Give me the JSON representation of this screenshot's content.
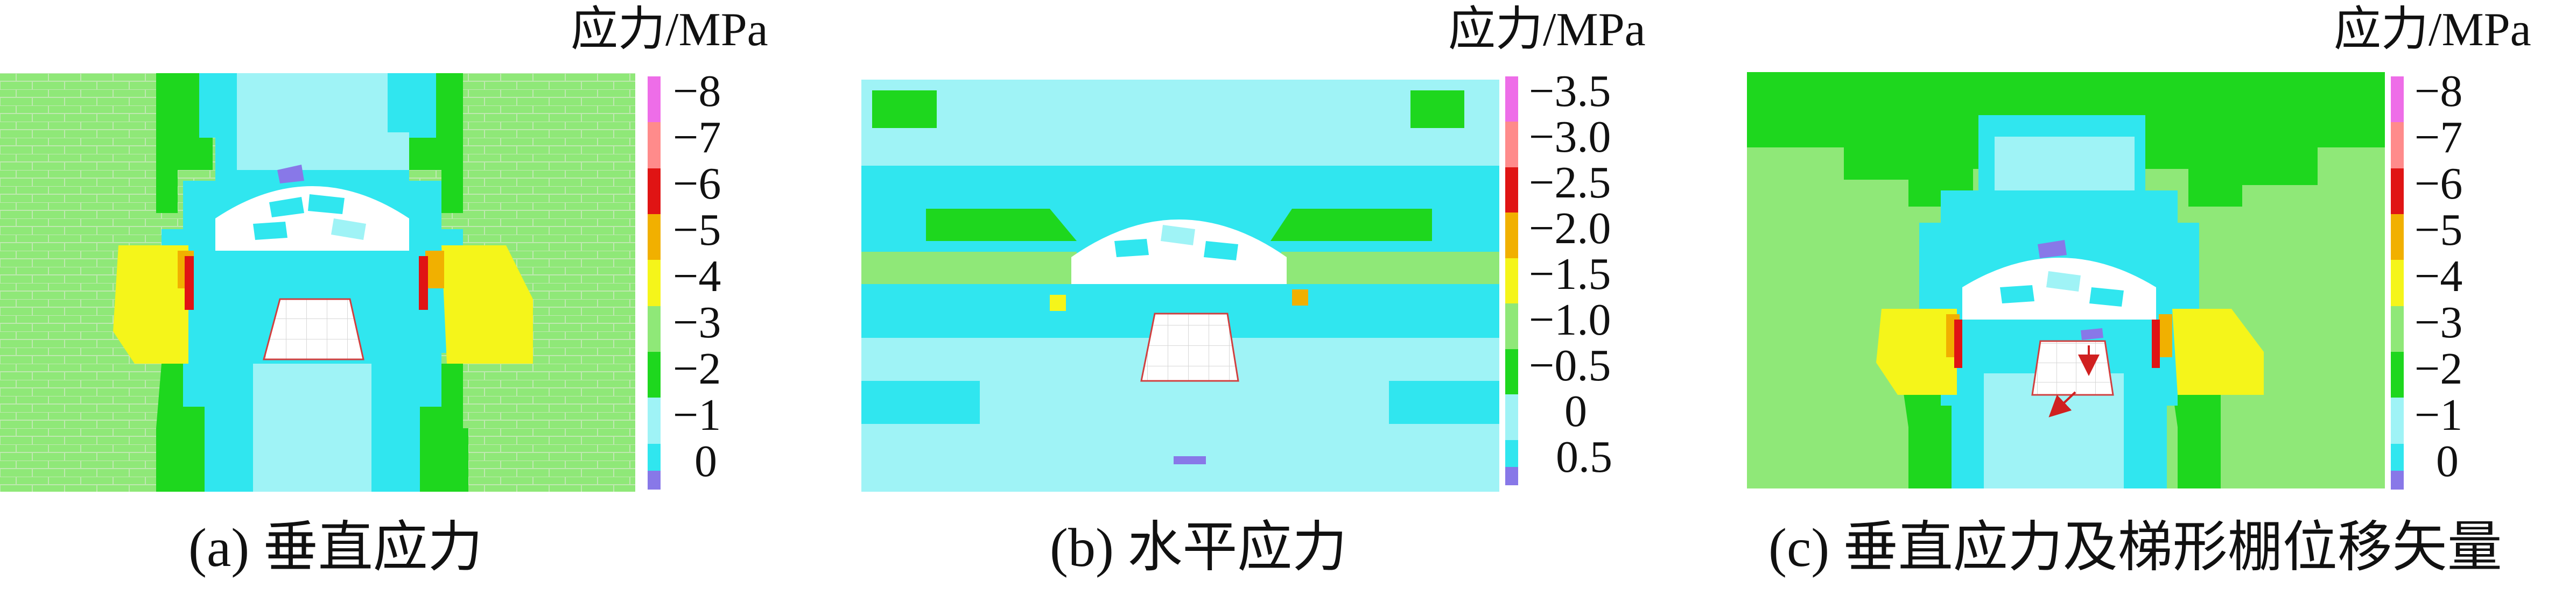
{
  "colors": {
    "pink": "#ee6de8",
    "salmon": "#ff8b8b",
    "red": "#e01414",
    "orange": "#f1b000",
    "yellow": "#f5f51a",
    "lightgreen": "#8fe878",
    "green": "#1ed71e",
    "lightcyan": "#9ff3f6",
    "cyan": "#30e6ef",
    "purple": "#8878e8",
    "white": "#ffffff",
    "gridline": "#d7d7d7"
  },
  "panels": [
    {
      "id": "a",
      "colorbar_title": "应力/MPa",
      "ticks": [
        "−8",
        "−7",
        "−6",
        "−5",
        "−4",
        "−3",
        "−2",
        "−1",
        "0"
      ],
      "caption": "(a) 垂直应力"
    },
    {
      "id": "b",
      "colorbar_title": "应力/MPa",
      "ticks": [
        "−3.5",
        "−3.0",
        "−2.5",
        "−2.0",
        "−1.5",
        "−1.0",
        "−0.5",
        "0",
        "0.5"
      ],
      "caption": "(b) 水平应力"
    },
    {
      "id": "c",
      "colorbar_title": "应力/MPa",
      "ticks": [
        "−8",
        "−7",
        "−6",
        "−5",
        "−4",
        "−3",
        "−2",
        "−1",
        "0"
      ],
      "caption": "(c) 垂直应力及梯形棚位移矢量"
    }
  ]
}
